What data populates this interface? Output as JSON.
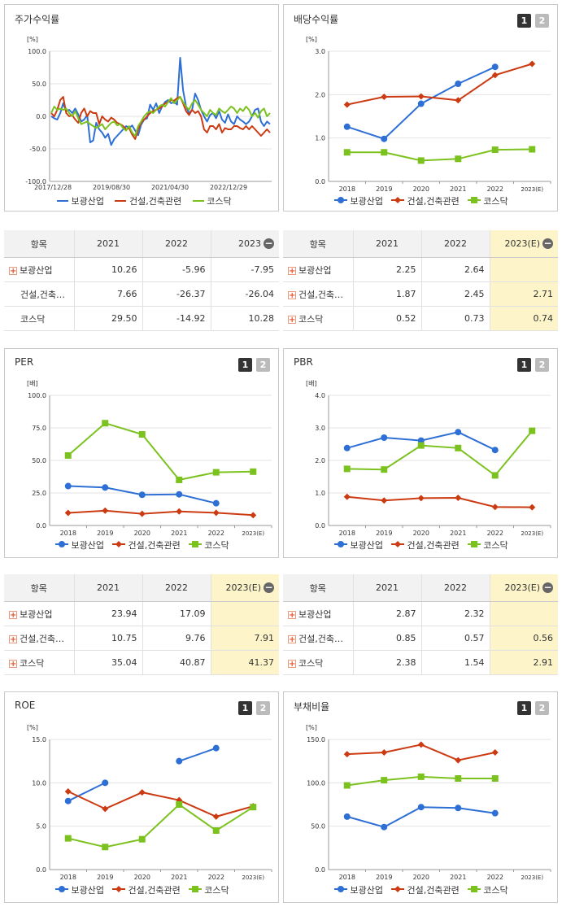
{
  "colors": {
    "series1": "#2e6fd6",
    "series2": "#cc3a12",
    "series3": "#7cc21e",
    "estimate_bg": "#fdf5c9"
  },
  "buttons": [
    "1",
    "2"
  ],
  "panels": {
    "stock": {
      "title": "주가수익률",
      "unit": "[%]"
    },
    "dividend": {
      "title": "배당수익률",
      "unit": "[%]"
    },
    "per": {
      "title": "PER",
      "unit": "[배]"
    },
    "pbr": {
      "title": "PBR",
      "unit": "[배]"
    },
    "roe": {
      "title": "ROE",
      "unit": "[%]"
    },
    "debt": {
      "title": "부채비율",
      "unit": "[%]"
    }
  },
  "tables": {
    "stock": {
      "headers": [
        "항목",
        "2021",
        "2022",
        "2023"
      ],
      "rows": [
        {
          "name": "보광산업",
          "plus": true,
          "values": [
            "10.26",
            "-5.96",
            "-7.95"
          ]
        },
        {
          "name": "건설,건축…",
          "plus": false,
          "values": [
            "7.66",
            "-26.37",
            "-26.04"
          ]
        },
        {
          "name": "코스닥",
          "plus": false,
          "values": [
            "29.50",
            "-14.92",
            "10.28"
          ]
        }
      ]
    },
    "dividend": {
      "headers": [
        "항목",
        "2021",
        "2022",
        "2023(E)"
      ],
      "rows": [
        {
          "name": "보광산업",
          "plus": true,
          "values": [
            "2.25",
            "2.64",
            ""
          ]
        },
        {
          "name": "건설,건축…",
          "plus": true,
          "values": [
            "1.87",
            "2.45",
            "2.71"
          ]
        },
        {
          "name": "코스닥",
          "plus": true,
          "values": [
            "0.52",
            "0.73",
            "0.74"
          ]
        }
      ]
    },
    "per": {
      "headers": [
        "항목",
        "2021",
        "2022",
        "2023(E)"
      ],
      "rows": [
        {
          "name": "보광산업",
          "plus": true,
          "values": [
            "23.94",
            "17.09",
            ""
          ]
        },
        {
          "name": "건설,건축…",
          "plus": true,
          "values": [
            "10.75",
            "9.76",
            "7.91"
          ]
        },
        {
          "name": "코스닥",
          "plus": true,
          "values": [
            "35.04",
            "40.87",
            "41.37"
          ]
        }
      ]
    },
    "pbr": {
      "headers": [
        "항목",
        "2021",
        "2022",
        "2023(E)"
      ],
      "rows": [
        {
          "name": "보광산업",
          "plus": true,
          "values": [
            "2.87",
            "2.32",
            ""
          ]
        },
        {
          "name": "건설,건축…",
          "plus": true,
          "values": [
            "0.85",
            "0.57",
            "0.56"
          ]
        },
        {
          "name": "코스닥",
          "plus": true,
          "values": [
            "2.38",
            "1.54",
            "2.91"
          ]
        }
      ]
    }
  },
  "chart_data": [
    {
      "id": "stock",
      "type": "line",
      "marker": "none",
      "ylim": [
        -100,
        100
      ],
      "yticks": [
        "100.0",
        "50.0",
        "0.0",
        "-50.0",
        "-100.0"
      ],
      "xlabels": [
        "2017/12/28",
        "2019/08/30",
        "2021/04/30",
        "2022/12/29"
      ],
      "series": [
        {
          "name": "보광산업",
          "values": [
            0,
            -3,
            -5,
            5,
            20,
            8,
            10,
            5,
            12,
            3,
            -8,
            -5,
            2,
            -40,
            -37,
            -10,
            -20,
            -25,
            -33,
            -27,
            -44,
            -35,
            -30,
            -25,
            -20,
            -15,
            -18,
            -14,
            -22,
            -29,
            -13,
            -5,
            -3,
            18,
            10,
            20,
            5,
            15,
            22,
            25,
            20,
            22,
            18,
            90,
            40,
            15,
            5,
            10,
            35,
            25,
            10,
            0,
            -8,
            2,
            5,
            -3,
            8,
            -5,
            -10,
            3,
            -8,
            -12,
            0,
            -5,
            -8,
            -12,
            -8,
            0,
            10,
            12,
            -8,
            -15,
            -8,
            -12
          ]
        },
        {
          "name": "건설,건축관련",
          "values": [
            5,
            0,
            10,
            25,
            30,
            5,
            0,
            2,
            -5,
            -10,
            5,
            12,
            0,
            8,
            5,
            5,
            -12,
            0,
            -5,
            -8,
            -2,
            -5,
            -10,
            -12,
            -15,
            -20,
            -18,
            -28,
            -35,
            -20,
            -10,
            -5,
            0,
            5,
            8,
            10,
            12,
            15,
            20,
            22,
            25,
            24,
            28,
            30,
            20,
            8,
            2,
            10,
            5,
            8,
            0,
            -20,
            -25,
            -15,
            -15,
            -20,
            -12,
            -25,
            -18,
            -20,
            -20,
            -15,
            -15,
            -18,
            -20,
            -15,
            -20,
            -15,
            -20,
            -25,
            -30,
            -25,
            -20,
            -25
          ]
        },
        {
          "name": "코스닥",
          "values": [
            5,
            15,
            10,
            12,
            10,
            12,
            5,
            0,
            8,
            -3,
            -12,
            -10,
            -8,
            -12,
            -15,
            -18,
            -15,
            -12,
            -20,
            -15,
            -10,
            -8,
            -14,
            -12,
            -18,
            -22,
            -15,
            -25,
            -30,
            -15,
            -8,
            0,
            5,
            8,
            5,
            10,
            15,
            18,
            15,
            22,
            28,
            20,
            25,
            30,
            22,
            15,
            10,
            20,
            25,
            18,
            10,
            5,
            0,
            10,
            5,
            2,
            12,
            8,
            5,
            10,
            15,
            12,
            5,
            12,
            8,
            15,
            10,
            0,
            5,
            -2,
            8,
            12,
            0,
            5
          ]
        }
      ]
    },
    {
      "id": "dividend",
      "type": "line",
      "marker": "full",
      "ylim": [
        0,
        3
      ],
      "yticks": [
        "3.0",
        "2.0",
        "1.0",
        "0.0"
      ],
      "categories": [
        "2018",
        "2019",
        "2020",
        "2021",
        "2022",
        "2023(E)"
      ],
      "series": [
        {
          "name": "보광산업",
          "values": [
            1.26,
            0.98,
            1.79,
            2.25,
            2.64,
            null
          ]
        },
        {
          "name": "건설,건축관련",
          "values": [
            1.77,
            1.95,
            1.96,
            1.87,
            2.45,
            2.71
          ]
        },
        {
          "name": "코스닥",
          "values": [
            0.67,
            0.67,
            0.48,
            0.52,
            0.73,
            0.74
          ]
        }
      ]
    },
    {
      "id": "per",
      "type": "line",
      "marker": "full",
      "ylim": [
        0,
        100
      ],
      "yticks": [
        "100.0",
        "75.0",
        "50.0",
        "25.0",
        "0.0"
      ],
      "categories": [
        "2018",
        "2019",
        "2020",
        "2021",
        "2022",
        "2023(E)"
      ],
      "series": [
        {
          "name": "보광산업",
          "values": [
            30.3,
            29.2,
            23.6,
            23.94,
            17.09,
            null
          ]
        },
        {
          "name": "건설,건축관련",
          "values": [
            9.7,
            11.4,
            9.0,
            10.75,
            9.76,
            7.91
          ]
        },
        {
          "name": "코스닥",
          "values": [
            53.8,
            78.6,
            70.0,
            35.04,
            40.87,
            41.37
          ]
        }
      ]
    },
    {
      "id": "pbr",
      "type": "line",
      "marker": "full",
      "ylim": [
        0,
        4
      ],
      "yticks": [
        "4.0",
        "3.0",
        "2.0",
        "1.0",
        "0.0"
      ],
      "categories": [
        "2018",
        "2019",
        "2020",
        "2021",
        "2022",
        "2023(E)"
      ],
      "series": [
        {
          "name": "보광산업",
          "values": [
            2.38,
            2.7,
            2.61,
            2.87,
            2.32,
            null
          ]
        },
        {
          "name": "건설,건축관련",
          "values": [
            0.88,
            0.77,
            0.84,
            0.85,
            0.57,
            0.56
          ]
        },
        {
          "name": "코스닥",
          "values": [
            1.74,
            1.72,
            2.46,
            2.38,
            1.54,
            2.91
          ]
        }
      ]
    },
    {
      "id": "roe",
      "type": "line",
      "marker": "full",
      "ylim": [
        0,
        15
      ],
      "yticks": [
        "15.0",
        "10.0",
        "5.0",
        "0.0"
      ],
      "categories": [
        "2018",
        "2019",
        "2020",
        "2021",
        "2022",
        "2023(E)"
      ],
      "series": [
        {
          "name": "보광산업",
          "values": [
            7.9,
            10.0,
            null,
            12.5,
            14.0,
            null
          ]
        },
        {
          "name": "건설,건축관련",
          "values": [
            9.0,
            7.0,
            8.9,
            8.0,
            6.1,
            7.3
          ]
        },
        {
          "name": "코스닥",
          "values": [
            3.6,
            2.6,
            3.5,
            7.5,
            4.5,
            7.2
          ]
        }
      ]
    },
    {
      "id": "debt",
      "type": "line",
      "marker": "full",
      "ylim": [
        0,
        150
      ],
      "yticks": [
        "150.0",
        "100.0",
        "50.0",
        "0.0"
      ],
      "categories": [
        "2018",
        "2019",
        "2020",
        "2021",
        "2022",
        "2023(E)"
      ],
      "series": [
        {
          "name": "보광산업",
          "values": [
            61,
            49,
            72,
            71,
            65,
            null
          ]
        },
        {
          "name": "건설,건축관련",
          "values": [
            133,
            135,
            144,
            126,
            135,
            null
          ]
        },
        {
          "name": "코스닥",
          "values": [
            97,
            103,
            107,
            105,
            105,
            null
          ]
        }
      ]
    }
  ]
}
